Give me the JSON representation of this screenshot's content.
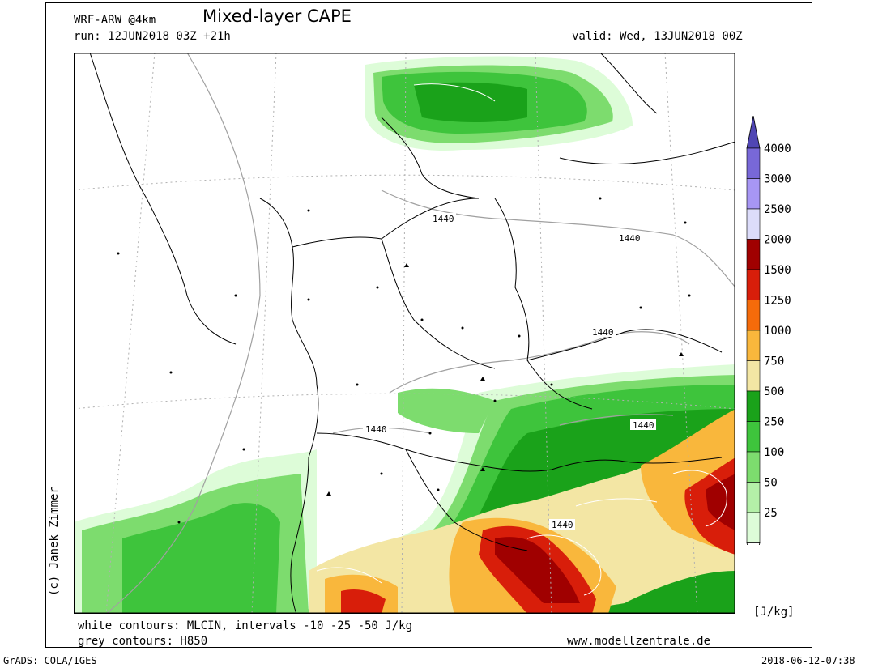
{
  "header": {
    "model": "WRF-ARW @4km",
    "title": "Mixed-layer CAPE",
    "run": "run: 12JUN2018 03Z +21h",
    "valid": "valid: Wed, 13JUN2018 00Z"
  },
  "footer": {
    "white_contours": "white contours: MLCIN, intervals -10 -25 -50 J/kg",
    "grey_contours": "grey contours: H850",
    "website": "www.modellzentrale.de",
    "grads": "GrADS: COLA/IGES",
    "timestamp": "2018-06-12-07:38"
  },
  "copyright": "(c) Janek Zimmer",
  "legend": {
    "unit": "[J/kg]",
    "levels": [
      {
        "label": "25",
        "color": "#ddfcd8"
      },
      {
        "label": "50",
        "color": "#b4f0a8"
      },
      {
        "label": "100",
        "color": "#7ddc6e"
      },
      {
        "label": "250",
        "color": "#3ec43c"
      },
      {
        "label": "500",
        "color": "#1aa21a"
      },
      {
        "label": "750",
        "color": "#f3e6a4"
      },
      {
        "label": "1000",
        "color": "#f9b73c"
      },
      {
        "label": "1250",
        "color": "#f56b0a"
      },
      {
        "label": "1500",
        "color": "#d81e0a"
      },
      {
        "label": "2000",
        "color": "#a00000"
      },
      {
        "label": "2500",
        "color": "#dcdcfa"
      },
      {
        "label": "3000",
        "color": "#a796f4"
      },
      {
        "label": "4000",
        "color": "#7868d8"
      }
    ],
    "top_color": "#5046b4"
  },
  "contour_labels": [
    "1440",
    "1440",
    "1440",
    "1440",
    "1440",
    "1440"
  ],
  "colors": {
    "border": "#000000",
    "grey_contour": "#a0a0a0",
    "grid": "#b0b0b0"
  }
}
